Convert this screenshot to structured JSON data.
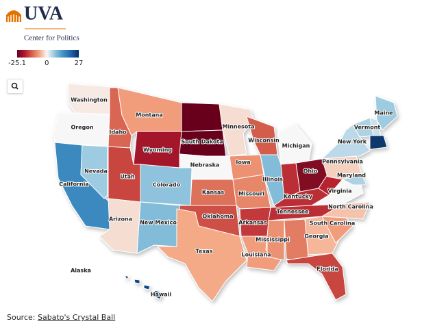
{
  "header": {
    "logo": "UVA",
    "subtitle": "Center for Politics"
  },
  "chart_data": {
    "type": "choropleth",
    "legend_ticks": [
      -25.1,
      0,
      27
    ],
    "colors": [
      "#67001f",
      "#b2182b",
      "#d6604d",
      "#f4a582",
      "#f7f7f7",
      "#92c5de",
      "#4393c3",
      "#2166ac",
      "#053061"
    ],
    "states": [
      {
        "name": "Washington",
        "value": -1
      },
      {
        "name": "Oregon",
        "value": 0
      },
      {
        "name": "California",
        "value": 15
      },
      {
        "name": "Nevada",
        "value": 6
      },
      {
        "name": "Idaho",
        "value": -12
      },
      {
        "name": "Montana",
        "value": -7
      },
      {
        "name": "Wyoming",
        "value": -20
      },
      {
        "name": "Utah",
        "value": -15
      },
      {
        "name": "Colorado",
        "value": 7
      },
      {
        "name": "Arizona",
        "value": -2
      },
      {
        "name": "New Mexico",
        "value": 8
      },
      {
        "name": null,
        "value": -25
      },
      {
        "name": "South Dakota",
        "value": -25
      },
      {
        "name": "Nebraska",
        "value": 0
      },
      {
        "name": "Kansas",
        "value": -11
      },
      {
        "name": "Oklahoma",
        "value": -14
      },
      {
        "name": "Texas",
        "value": -6
      },
      {
        "name": "Minnesota",
        "value": -2
      },
      {
        "name": "Iowa",
        "value": -8
      },
      {
        "name": "Missouri",
        "value": -9
      },
      {
        "name": "Arkansas",
        "value": -16
      },
      {
        "name": "Louisiana",
        "value": -7
      },
      {
        "name": "Wisconsin",
        "value": -13
      },
      {
        "name": "Illinois",
        "value": 8
      },
      {
        "name": "Michigan",
        "value": 0
      },
      {
        "name": null,
        "value": -17
      },
      {
        "name": "Ohio",
        "value": -23
      },
      {
        "name": "Kentucky",
        "value": -17
      },
      {
        "name": "Tennessee",
        "value": -17
      },
      {
        "name": "Mississippi",
        "value": -8
      },
      {
        "name": null,
        "value": -10
      },
      {
        "name": "Georgia",
        "value": -5
      },
      {
        "name": "Florida",
        "value": -15
      },
      {
        "name": "South Carolina",
        "value": -7
      },
      {
        "name": "North Carolina",
        "value": -4
      },
      {
        "name": "Virginia",
        "value": 0
      },
      {
        "name": null,
        "value": -18
      },
      {
        "name": "Pennsylvania",
        "value": -3
      },
      {
        "name": "Maryland",
        "value": 5
      },
      {
        "name": "New York",
        "value": 4
      },
      {
        "name": "Vermont",
        "value": 5
      },
      {
        "name": "Maine",
        "value": 6
      },
      {
        "name": null,
        "value": 3
      },
      {
        "name": null,
        "value": 26
      },
      {
        "name": "Hawaii",
        "value": 24
      },
      {
        "name": "Alaska",
        "value": null
      }
    ]
  },
  "source": {
    "label": "Source:",
    "link": "Sabato's Crystal Ball"
  }
}
